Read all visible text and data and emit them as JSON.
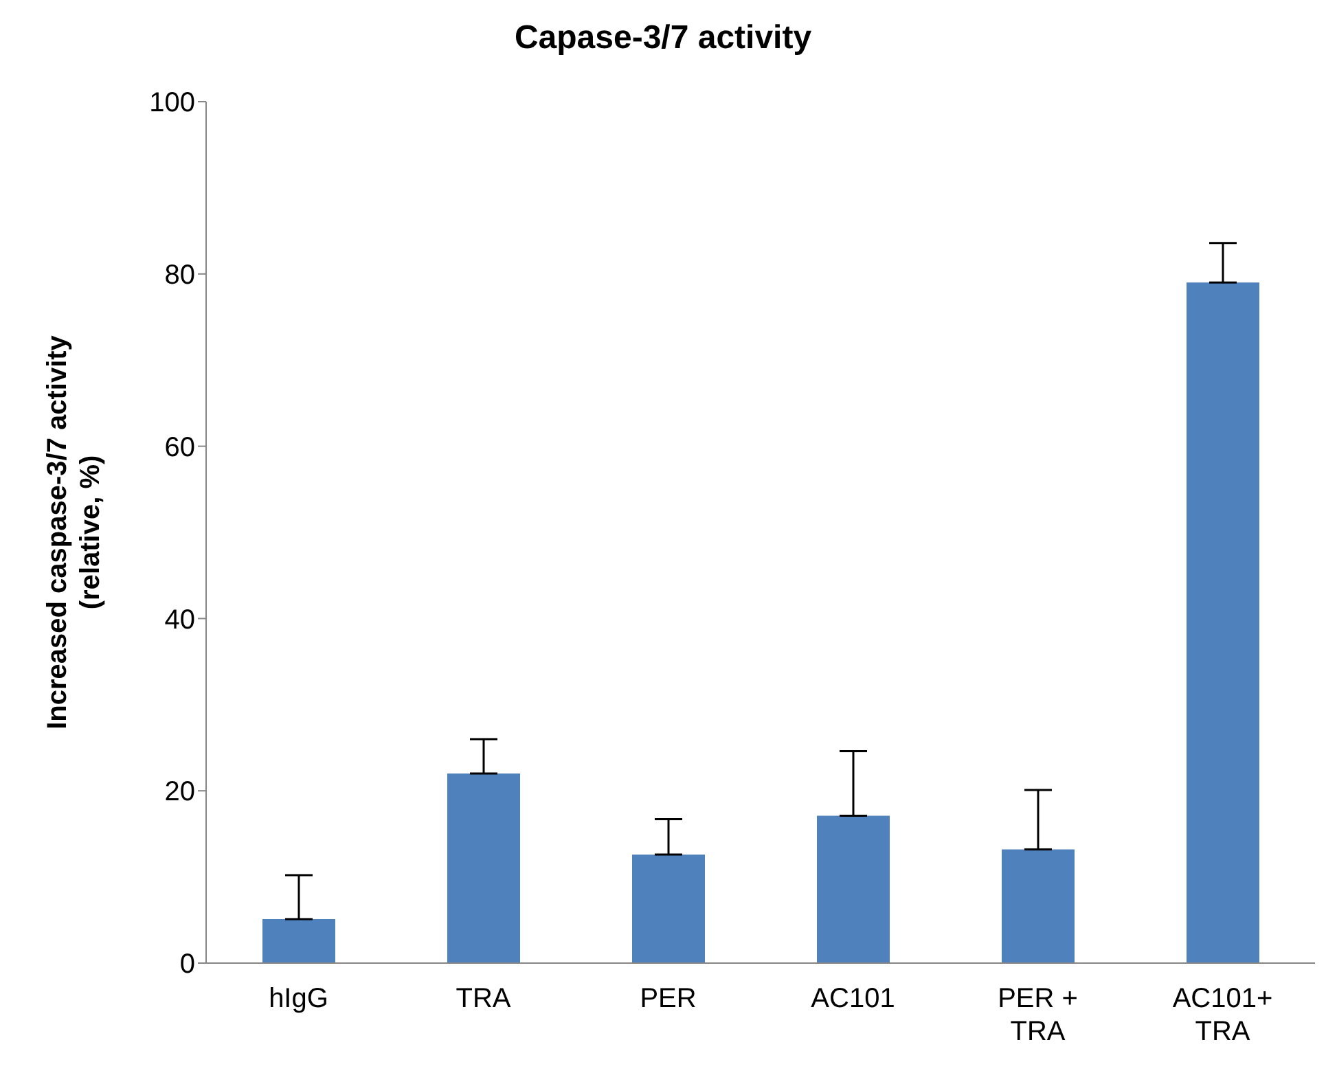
{
  "chart_data": {
    "type": "bar",
    "title": "Capase-3/7 activity",
    "ylabel": "Increased caspase-3/7 activity\n(relative, %)",
    "categories": [
      "hIgG",
      "TRA",
      "PER",
      "AC101",
      "PER +\nTRA",
      "AC101+\nTRA"
    ],
    "values": [
      5.1,
      22.0,
      12.6,
      17.1,
      13.2,
      79.0
    ],
    "errors": [
      [
        5.1,
        10.2
      ],
      [
        22.0,
        26.0
      ],
      [
        12.6,
        16.7
      ],
      [
        17.1,
        24.6
      ],
      [
        13.2,
        20.1
      ],
      [
        79.0,
        83.6
      ]
    ],
    "color": "#4f81bd",
    "ylim": [
      0,
      100
    ],
    "yticks": [
      0,
      20,
      40,
      60,
      80,
      100
    ],
    "grid": false,
    "legend": false
  }
}
